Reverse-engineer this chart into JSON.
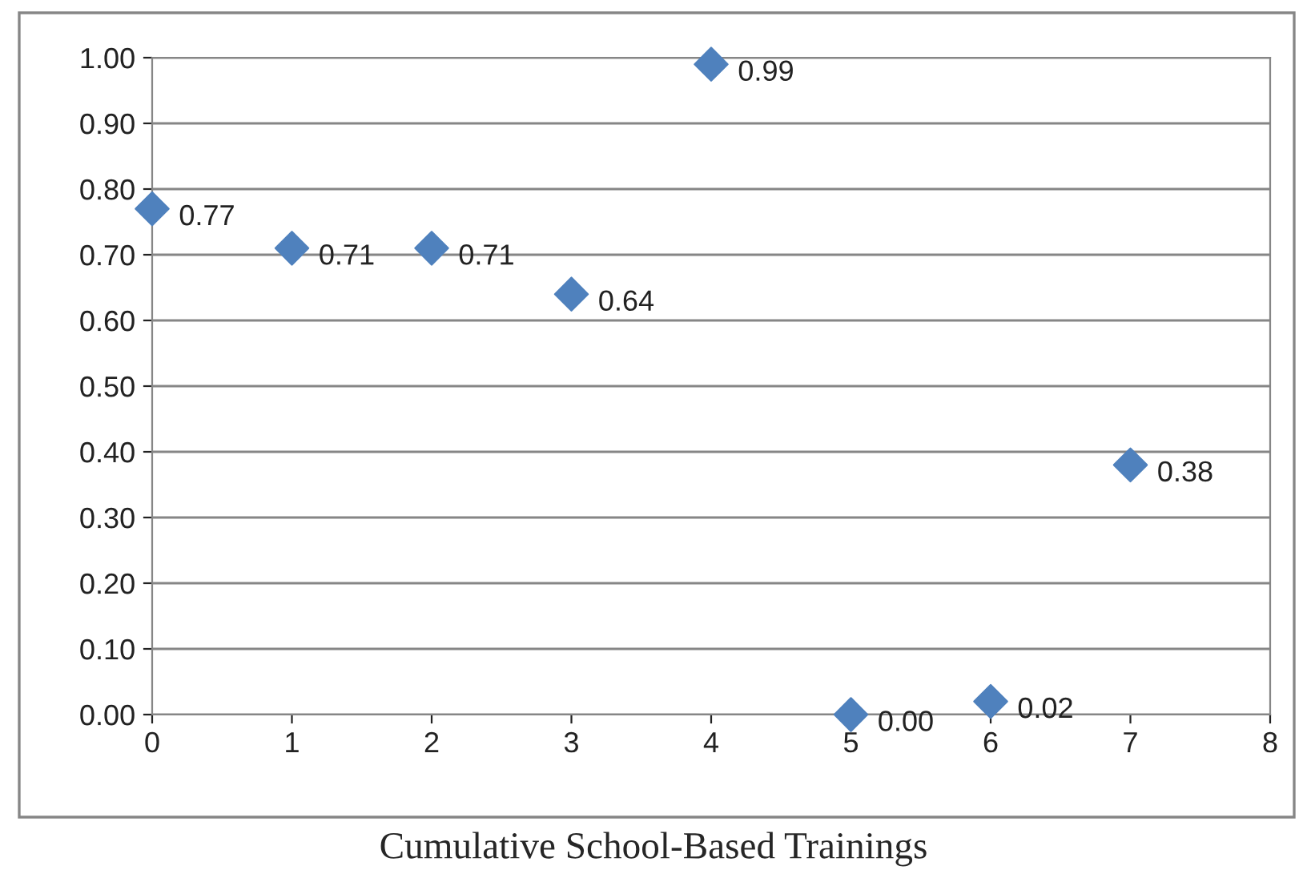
{
  "chart_data": {
    "type": "scatter",
    "xlabel": "Cumulative School-Based Trainings",
    "x": [
      0,
      1,
      2,
      3,
      4,
      5,
      6,
      7
    ],
    "values": [
      0.77,
      0.71,
      0.71,
      0.64,
      0.99,
      0.0,
      0.02,
      0.38
    ],
    "value_labels": [
      "0.77",
      "0.71",
      "0.71",
      "0.64",
      "0.99",
      "0.00",
      "0.02",
      "0.38"
    ],
    "color": "#4f81bd",
    "marker": "diamond",
    "xlim": [
      0,
      8
    ],
    "xticks": [
      0,
      1,
      2,
      3,
      4,
      5,
      6,
      7,
      8
    ],
    "ylim": [
      0,
      1
    ],
    "yticks": [
      {
        "value": 0,
        "label": "0.00"
      },
      {
        "value": 0.1,
        "label": "0.10"
      },
      {
        "value": 0.2,
        "label": "0.20"
      },
      {
        "value": 0.3,
        "label": "0.30"
      },
      {
        "value": 0.4,
        "label": "0.40"
      },
      {
        "value": 0.5,
        "label": "0.50"
      },
      {
        "value": 0.6,
        "label": "0.60"
      },
      {
        "value": 0.7,
        "label": "0.70"
      },
      {
        "value": 0.8,
        "label": "0.80"
      },
      {
        "value": 0.9,
        "label": "0.90"
      },
      {
        "value": 1,
        "label": "1.00"
      }
    ],
    "grid": "y",
    "legend": false
  }
}
